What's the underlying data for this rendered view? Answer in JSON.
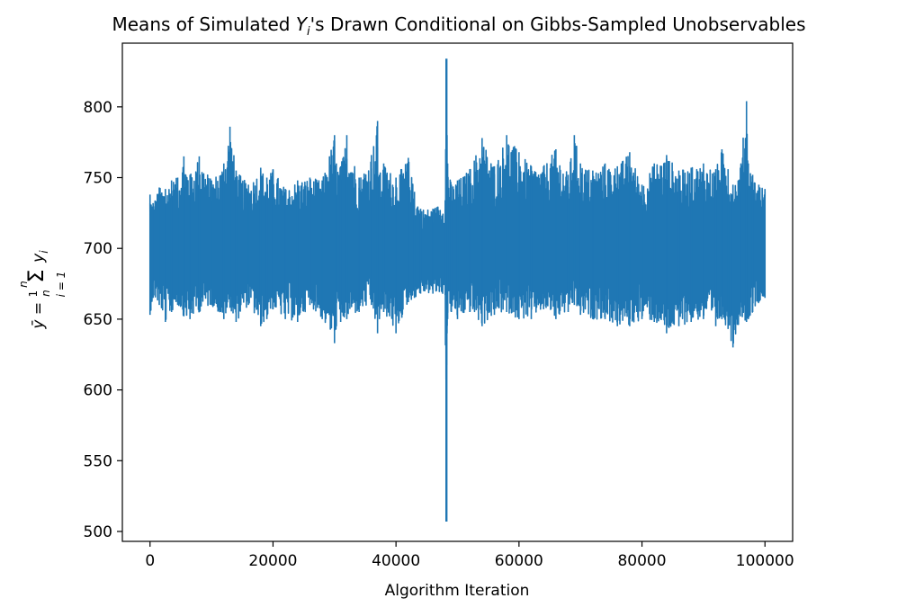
{
  "chart_data": {
    "type": "line",
    "title": "Means of Simulated Y_i's Drawn Conditional on Gibbs-Sampled Unobservables",
    "xlabel": "Algorithm Iteration",
    "ylabel": "ȳ = (1/n) Σ_{i=1}^{n} y_i",
    "xlim": [
      -4500,
      104500
    ],
    "ylim": [
      493,
      845
    ],
    "x_ticks": [
      0,
      20000,
      40000,
      60000,
      80000,
      100000
    ],
    "y_ticks": [
      500,
      550,
      600,
      650,
      700,
      750,
      800
    ],
    "grid": false,
    "legend": "none",
    "line_color": "#1f77b4",
    "x_range": [
      0,
      100000
    ],
    "series": [
      {
        "x": [
          0,
          500,
          1500,
          2500,
          3500,
          4500,
          5500,
          6500,
          8000,
          10000,
          12000,
          13000,
          14000,
          16000,
          18000,
          19000,
          20000,
          22000,
          24000,
          26000,
          28000,
          30000,
          30300,
          31000,
          32000,
          34000,
          36000,
          37000,
          37300,
          38000,
          40000,
          42000,
          43000,
          44000,
          46000,
          48000,
          48200,
          48300,
          48400,
          49000,
          50000,
          52000,
          54000,
          56000,
          58000,
          60000,
          62000,
          64000,
          66000,
          68000,
          69000,
          70000,
          72000,
          74000,
          76000,
          78000,
          80000,
          82000,
          84000,
          86000,
          88000,
          90000,
          92000,
          93000,
          94000,
          94800,
          96000,
          97000,
          97300,
          98000,
          99000,
          100000
        ],
        "high": [
          738,
          732,
          743,
          742,
          748,
          750,
          765,
          752,
          765,
          748,
          760,
          786,
          755,
          745,
          757,
          750,
          756,
          742,
          748,
          750,
          748,
          780,
          760,
          758,
          780,
          750,
          766,
          790,
          752,
          760,
          750,
          764,
          740,
          728,
          728,
          734,
          834,
          780,
          760,
          745,
          748,
          756,
          778,
          758,
          780,
          768,
          758,
          758,
          770,
          752,
          780,
          760,
          755,
          760,
          758,
          768,
          745,
          760,
          766,
          755,
          757,
          760,
          756,
          770,
          756,
          745,
          757,
          804,
          760,
          752,
          745,
          742
        ],
        "low": [
          653,
          665,
          660,
          648,
          655,
          660,
          652,
          650,
          655,
          660,
          650,
          658,
          648,
          660,
          645,
          650,
          657,
          650,
          648,
          660,
          650,
          633,
          645,
          648,
          650,
          655,
          660,
          640,
          650,
          655,
          640,
          662,
          665,
          668,
          668,
          667,
          507,
          640,
          650,
          655,
          650,
          655,
          645,
          653,
          655,
          650,
          650,
          657,
          650,
          655,
          660,
          653,
          650,
          650,
          645,
          645,
          650,
          648,
          640,
          645,
          648,
          650,
          645,
          650,
          643,
          630,
          652,
          648,
          650,
          655,
          662,
          665
        ]
      }
    ]
  }
}
